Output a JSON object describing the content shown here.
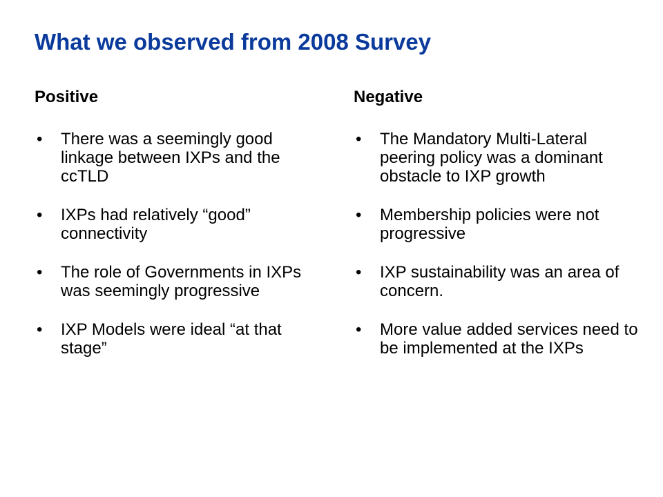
{
  "slide": {
    "title": "What we observed from 2008 Survey",
    "title_color": "#0a3a9c",
    "bullet_glyph": "•",
    "positive": {
      "heading": "Positive",
      "items": [
        "There was a seemingly good linkage between IXPs and the ccTLD",
        "IXPs had relatively “good” connectivity",
        "The role of Governments in IXPs was seemingly progressive",
        "IXP Models were ideal “at that stage”"
      ]
    },
    "negative": {
      "heading": "Negative",
      "items": [
        "The Mandatory Multi-Lateral peering policy was a dominant obstacle to IXP growth",
        "Membership policies were not progressive",
        "IXP sustainability was an area of concern.",
        "More value added services need to be implemented at the IXPs"
      ]
    }
  }
}
